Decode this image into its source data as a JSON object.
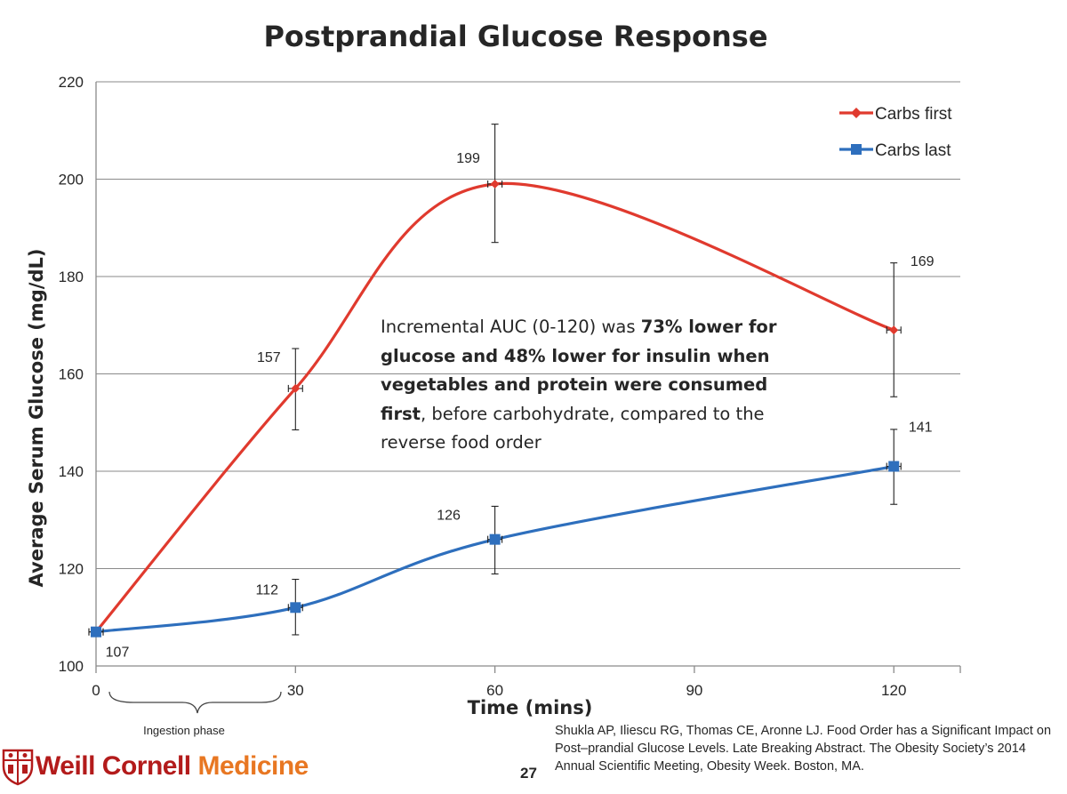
{
  "chart_data": {
    "type": "line",
    "title": "Postprandial Glucose Response",
    "xlabel": "Time (mins)",
    "ylabel": "Average Serum Glucose (mg/dL)",
    "xlim": [
      0,
      130
    ],
    "ylim": [
      100,
      220
    ],
    "x_ticks": [
      "0",
      "30",
      "60",
      "90",
      "120"
    ],
    "y_ticks": [
      "100",
      "120",
      "140",
      "160",
      "180",
      "200",
      "220"
    ],
    "grid": true,
    "legend_position": "top-right",
    "series": [
      {
        "name": "Carbs first",
        "color": "#e03a2e",
        "marker": "diamond",
        "x": [
          0,
          30,
          60,
          120
        ],
        "values": [
          107,
          157,
          199,
          169
        ],
        "labels": [
          "",
          "157",
          "199",
          "169"
        ],
        "error_low": [
          107,
          148.5,
          187,
          155.3
        ],
        "error_high": [
          107,
          165.2,
          211.3,
          182.8
        ]
      },
      {
        "name": "Carbs last",
        "color": "#2e6fbd",
        "marker": "square",
        "x": [
          0,
          30,
          60,
          120
        ],
        "values": [
          107,
          112,
          126,
          141
        ],
        "labels": [
          "107",
          "112",
          "126",
          "141"
        ],
        "error_low": [
          107,
          106.4,
          118.9,
          133.2
        ],
        "error_high": [
          107,
          117.8,
          132.8,
          148.6
        ]
      }
    ],
    "annotations": {
      "phase_label": "Ingestion phase",
      "text_segments": [
        {
          "text": "Incremental AUC (0-120) was ",
          "bold": false
        },
        {
          "text": "73% lower for glucose and 48% lower for insulin when vegetables and protein were consumed first",
          "bold": true
        },
        {
          "text": ", before carbohydrate, compared to the reverse food order",
          "bold": false
        }
      ]
    }
  },
  "citation": "Shukla AP, Iliescu RG, Thomas CE, Aronne LJ. Food Order has a Significant Impact on Post–prandial Glucose Levels. Late Breaking Abstract. The Obesity Society’s 2014 Annual Scientific Meeting, Obesity Week. Boston, MA.",
  "page_number": "27",
  "logo": {
    "part1": "Weill Cornell ",
    "part2": "Medicine",
    "color1": "#b31b1b",
    "color2": "#e87722"
  }
}
